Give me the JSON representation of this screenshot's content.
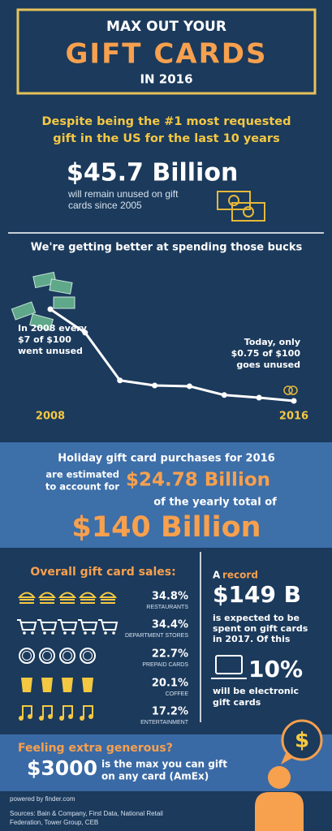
{
  "header": {
    "line1": "MAX OUT YOUR",
    "title": "GIFT CARDS",
    "line3": "IN 2016"
  },
  "intro": {
    "lines": [
      "Despite being the #1 most requested",
      "gift in the US for the last 10 years"
    ],
    "amount": "$45.7 Billion",
    "note_lines": [
      "will remain unused on gift",
      "cards since 2005"
    ]
  },
  "trend": {
    "heading": "We're getting better at spending those bucks",
    "left_note": [
      "In 2008 every",
      "$7 of $100",
      "went unused"
    ],
    "right_note": [
      "Today, only",
      "$0.75 of $100",
      "goes unused"
    ],
    "chart_data": {
      "type": "line",
      "categories": [
        "2008",
        null,
        null,
        null,
        null,
        null,
        null,
        "2016"
      ],
      "values": [
        7,
        5.4,
        2.15,
        1.8,
        1.75,
        1.15,
        0.97,
        0.75
      ],
      "color": "#ffffff",
      "ylim": [
        0,
        7
      ]
    }
  },
  "holiday": {
    "line1": "Holiday gift card purchases for 2016",
    "left_lines": [
      "are estimated",
      "to account for"
    ],
    "amount": "$24.78 Billion",
    "line3": "of the yearly total of",
    "total": "$140 Billion"
  },
  "sales": {
    "heading": "Overall gift card sales:",
    "rows": [
      {
        "percent": "34.8%",
        "label": "RESTAURANTS"
      },
      {
        "percent": "34.4%",
        "label": "DEPARTMENT STORES"
      },
      {
        "percent": "22.7%",
        "label": "PREPAID CARDS"
      },
      {
        "percent": "20.1%",
        "label": "COFFEE"
      },
      {
        "percent": "17.2%",
        "label": "ENTERTAINMENT"
      }
    ]
  },
  "record": {
    "prefix": "A",
    "word": "record",
    "amount": "$149 B",
    "lines": [
      "is expected to be",
      "spent on gift cards",
      "in 2017. Of this"
    ],
    "percent": "10%",
    "tail_lines": [
      "will be electronic",
      "gift cards"
    ]
  },
  "generous": {
    "heading": "Feeling extra generous?",
    "amount": "$3000",
    "lines": [
      "is the max you can gift",
      "on any card (AmEx)"
    ]
  },
  "footer": {
    "powered": "powered by finder.com",
    "sources": [
      "Sources: Bain & Company, First Data, National Retail",
      "Federation, Tower Group, CEB"
    ]
  }
}
